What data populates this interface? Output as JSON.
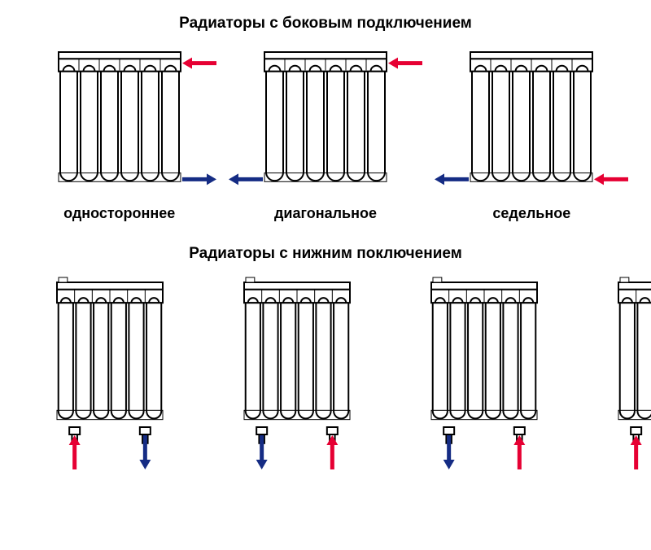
{
  "colors": {
    "stroke": "#000000",
    "fill": "#ffffff",
    "hot": "#e60033",
    "cold": "#152c84",
    "background": "#ffffff"
  },
  "titles": {
    "side": "Радиаторы с боковым подключением",
    "bottom": "Радиаторы с нижним поключением"
  },
  "topRow": [
    {
      "caption": "одностороннее",
      "arrows": {
        "topRight": "hot-left",
        "botRight": "cold-right"
      }
    },
    {
      "caption": "диагональное",
      "arrows": {
        "topRight": "hot-left",
        "botLeft": "cold-left"
      }
    },
    {
      "caption": "седельное",
      "arrows": {
        "botRight": "hot-left",
        "botLeft": "cold-left"
      }
    }
  ],
  "bottomRow": [
    {
      "arrows": {
        "botDownLeft": "hot-up",
        "botDownRight": "cold-down"
      }
    },
    {
      "arrows": {
        "botDownLeft": "cold-down",
        "botDownRight": "hot-up"
      }
    },
    {
      "arrows": {
        "botDownLeft": "cold-down",
        "botDownRight": "hot-up"
      }
    },
    {
      "arrows": {
        "botDownLeft": "hot-up",
        "botDownRight": "cold-down"
      }
    }
  ],
  "radiator": {
    "sections": 6,
    "widthTop": 150,
    "heightTop": 170,
    "widthBottom": 130,
    "heightBottom": 180,
    "strokeWidth": 2
  },
  "arrow": {
    "shaftLen": 30,
    "shaftWidth": 5,
    "headLen": 12,
    "headWidth": 14
  }
}
